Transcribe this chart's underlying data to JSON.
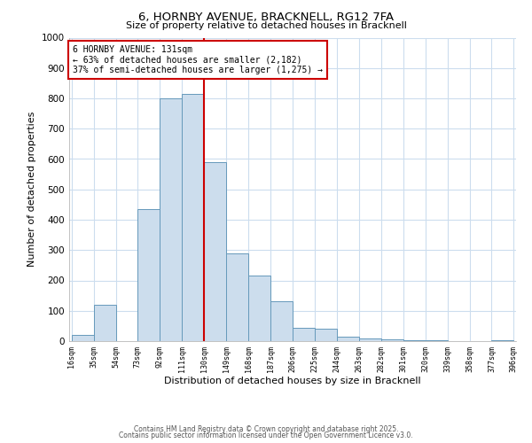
{
  "title1": "6, HORNBY AVENUE, BRACKNELL, RG12 7FA",
  "title2": "Size of property relative to detached houses in Bracknell",
  "xlabel": "Distribution of detached houses by size in Bracknell",
  "ylabel": "Number of detached properties",
  "bin_edges": [
    16,
    35,
    54,
    73,
    92,
    111,
    130,
    149,
    168,
    187,
    206,
    225,
    244,
    263,
    282,
    301,
    320,
    339,
    358,
    377,
    396
  ],
  "bar_heights": [
    20,
    120,
    0,
    435,
    800,
    815,
    590,
    290,
    215,
    130,
    45,
    40,
    15,
    10,
    5,
    3,
    2,
    1,
    1,
    2
  ],
  "bar_color": "#ccdded",
  "bar_edge_color": "#6699bb",
  "vline_x": 130,
  "vline_color": "#cc0000",
  "annotation_lines": [
    "6 HORNBY AVENUE: 131sqm",
    "← 63% of detached houses are smaller (2,182)",
    "37% of semi-detached houses are larger (1,275) →"
  ],
  "annotation_box_color": "#cc0000",
  "ylim": [
    0,
    1000
  ],
  "xlim": [
    16,
    396
  ],
  "tick_labels": [
    "16sqm",
    "35sqm",
    "54sqm",
    "73sqm",
    "92sqm",
    "111sqm",
    "130sqm",
    "149sqm",
    "168sqm",
    "187sqm",
    "206sqm",
    "225sqm",
    "244sqm",
    "263sqm",
    "282sqm",
    "301sqm",
    "320sqm",
    "339sqm",
    "358sqm",
    "377sqm",
    "396sqm"
  ],
  "footer1": "Contains HM Land Registry data © Crown copyright and database right 2025.",
  "footer2": "Contains public sector information licensed under the Open Government Licence v3.0.",
  "bg_color": "#ffffff",
  "grid_color": "#ccddee"
}
